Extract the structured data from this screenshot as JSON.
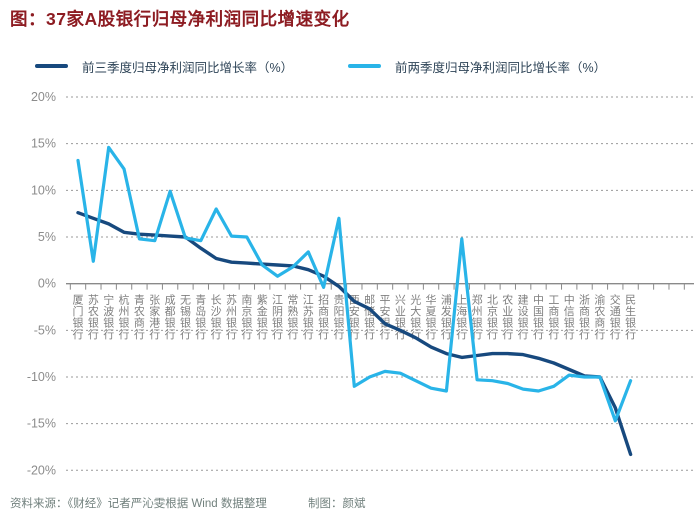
{
  "title": "图：37家A股银行归母净利润同比增速变化",
  "legend": {
    "items": [
      {
        "label": "前三季度归母净利润同比增长率（%）",
        "color": "#17497e"
      },
      {
        "label": "前两季度归母净利润同比增长率（%）",
        "color": "#29b4e8"
      }
    ]
  },
  "footer": {
    "source": "资料来源：《财经》记者严沁雯根据 Wind 数据整理",
    "credit": "制图：颜斌"
  },
  "chart_data": {
    "type": "line",
    "title": "图：37家A股银行归母净利润同比增速变化",
    "xlabel": "",
    "ylabel": "",
    "ylim": [
      -20,
      20
    ],
    "yticks": [
      20,
      15,
      10,
      5,
      0,
      -5,
      -10,
      -15,
      -20
    ],
    "ytick_labels": [
      "20%",
      "15%",
      "10%",
      "5%",
      "0%",
      "-5%",
      "-10%",
      "-15%",
      "-20%"
    ],
    "grid": "dotted horizontal",
    "legend_position": "top",
    "categories": [
      "厦门银行",
      "苏农银行",
      "宁波银行",
      "杭州银行",
      "青农商行",
      "张家港行",
      "成都银行",
      "无锡银行",
      "青岛银行",
      "长沙银行",
      "苏州银行",
      "南京银行",
      "紫金银行",
      "江阴银行",
      "常熟银行",
      "江苏银行",
      "招商银行",
      "贵阳银行",
      "西安银行",
      "邮储银行",
      "平安银行",
      "兴业银行",
      "光大银行",
      "华夏银行",
      "浦发银行",
      "上海银行",
      "郑州银行",
      "北京银行",
      "农业银行",
      "建设银行",
      "中国银行",
      "工商银行",
      "中信银行",
      "浙商银行",
      "渝农商行",
      "交通银行",
      "民生银行"
    ],
    "series": [
      {
        "name": "前三季度归母净利润同比增长率（%）",
        "color": "#17497e",
        "values": [
          7.6,
          7.0,
          6.4,
          5.5,
          5.3,
          5.2,
          5.1,
          5.0,
          3.8,
          2.7,
          2.3,
          2.2,
          2.1,
          2.0,
          1.9,
          1.5,
          0.8,
          -0.3,
          -1.9,
          -2.7,
          -4.3,
          -5.0,
          -5.8,
          -6.8,
          -7.5,
          -7.9,
          -7.7,
          -7.5,
          -7.5,
          -7.6,
          -8.0,
          -8.5,
          -9.2,
          -9.9,
          -10.0,
          -13.3,
          -18.3
        ]
      },
      {
        "name": "前两季度归母净利润同比增长率（%）",
        "color": "#29b4e8",
        "values": [
          13.2,
          2.4,
          14.6,
          12.3,
          4.8,
          4.6,
          9.9,
          4.9,
          4.6,
          8.0,
          5.1,
          5.0,
          2.0,
          0.8,
          1.8,
          3.4,
          -0.4,
          7.0,
          -11.0,
          -10.0,
          -9.4,
          -9.6,
          -10.4,
          -11.2,
          -11.5,
          4.8,
          -10.3,
          -10.4,
          -10.7,
          -11.3,
          -11.5,
          -11.0,
          -9.8,
          -10.0,
          -10.0,
          -14.7,
          -10.4
        ]
      }
    ]
  }
}
